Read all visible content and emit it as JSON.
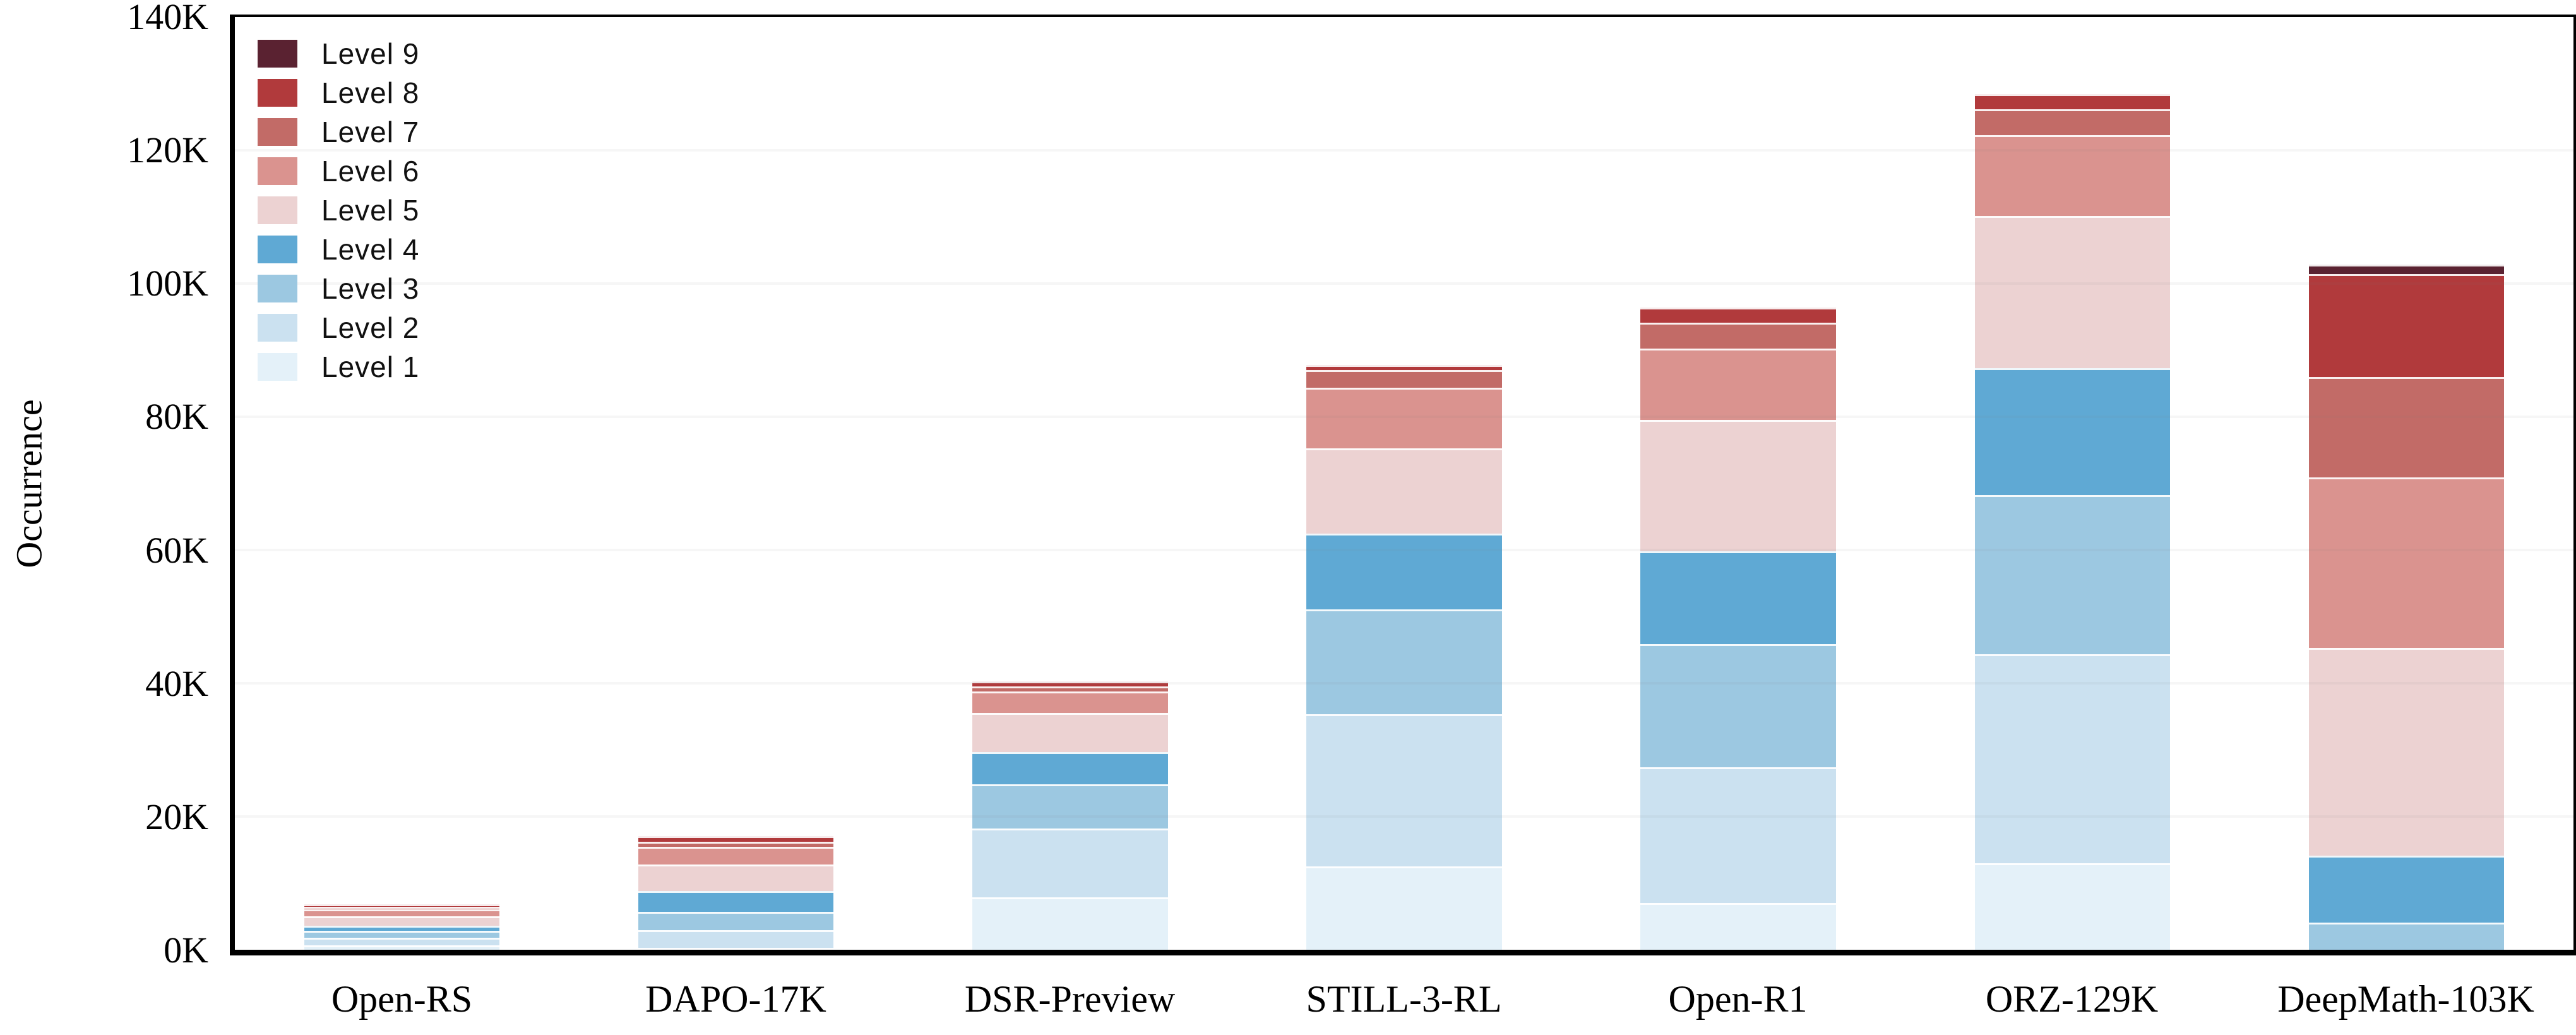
{
  "chart_data": {
    "type": "bar",
    "stacked": true,
    "title": "",
    "xlabel": "",
    "ylabel": "Occurrence",
    "ylim": [
      0,
      140000
    ],
    "y_tick_labels": [
      "0K",
      "20K",
      "40K",
      "60K",
      "80K",
      "100K",
      "120K",
      "140K"
    ],
    "y_tick_values": [
      0,
      20000,
      40000,
      60000,
      80000,
      100000,
      120000,
      140000
    ],
    "grid": "horizontal",
    "legend_position": "upper-left",
    "legend_order_top_to_bottom": [
      "Level 9",
      "Level 8",
      "Level 7",
      "Level 6",
      "Level 5",
      "Level 4",
      "Level 3",
      "Level 2",
      "Level 1"
    ],
    "categories": [
      "Open-RS",
      "DAPO-17K",
      "DSR-Preview",
      "STILL-3-RL",
      "Open-R1",
      "ORZ-129K",
      "DeepMath-103K"
    ],
    "series": [
      {
        "name": "Level 1",
        "color": "#E4F1F9",
        "values": [
          700,
          250,
          7900,
          12510,
          7050,
          12950,
          0
        ]
      },
      {
        "name": "Level 2",
        "color": "#CBE1F0",
        "values": [
          1100,
          2660,
          10280,
          22850,
          20340,
          31370,
          0
        ]
      },
      {
        "name": "Level 3",
        "color": "#9CC8E1",
        "values": [
          1050,
          2780,
          6690,
          15740,
          18490,
          23940,
          4120
        ]
      },
      {
        "name": "Level 4",
        "color": "#5FA9D4",
        "values": [
          760,
          3100,
          4810,
          11380,
          13940,
          19060,
          10020
        ]
      },
      {
        "name": "Level 5",
        "color": "#ECD2D2",
        "values": [
          1420,
          4010,
          5880,
          12800,
          19720,
          22850,
          31170
        ]
      },
      {
        "name": "Level 6",
        "color": "#DA938F",
        "values": [
          1040,
          2590,
          3220,
          9040,
          10740,
          12130,
          25640
        ]
      },
      {
        "name": "Level 7",
        "color": "#C26B67",
        "values": [
          380,
          790,
          730,
          2690,
          3890,
          3860,
          15030
        ]
      },
      {
        "name": "Level 8",
        "color": "#B13A3C",
        "values": [
          410,
          820,
          790,
          760,
          2250,
          2240,
          15450
        ]
      },
      {
        "name": "Level 9",
        "color": "#5A2231",
        "values": [
          0,
          0,
          0,
          0,
          0,
          0,
          1380
        ]
      }
    ],
    "totals": [
      6860,
      17000,
      40300,
      87770,
      96420,
      128400,
      102810
    ]
  }
}
